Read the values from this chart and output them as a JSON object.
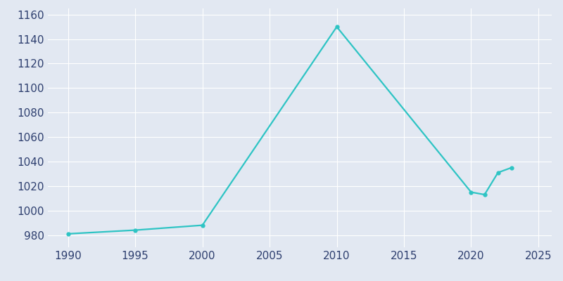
{
  "years": [
    1990,
    1995,
    2000,
    2010,
    2020,
    2021,
    2022,
    2023
  ],
  "population": [
    981,
    984,
    988,
    1150,
    1015,
    1013,
    1031,
    1035
  ],
  "line_color": "#2EC4C4",
  "plot_bg_color": "#E2E8F2",
  "fig_bg_color": "#E2E8F2",
  "grid_color": "#FFFFFF",
  "text_color": "#2E3F6F",
  "xlim": [
    1988.5,
    2026
  ],
  "ylim": [
    970,
    1165
  ],
  "xticks": [
    1990,
    1995,
    2000,
    2005,
    2010,
    2015,
    2020,
    2025
  ],
  "yticks": [
    980,
    1000,
    1020,
    1040,
    1060,
    1080,
    1100,
    1120,
    1140,
    1160
  ],
  "line_width": 1.6,
  "marker": "o",
  "marker_size": 3.5,
  "tick_labelsize": 11
}
